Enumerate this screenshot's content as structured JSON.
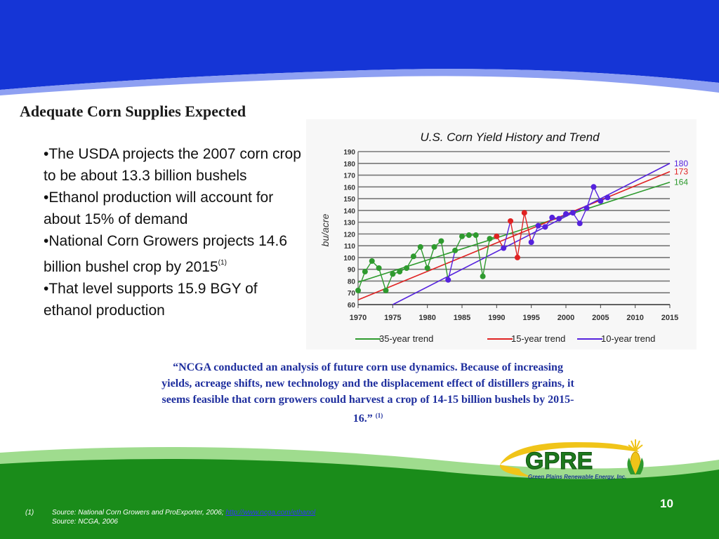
{
  "slide": {
    "title": "Adequate Corn Supplies Expected",
    "bullets": [
      "•The USDA projects the 2007 corn crop to be about 13.3 billion bushels",
      "•Ethanol production will account for about 15% of demand",
      "•National Corn Growers projects 14.6 billion bushel crop by 2015",
      "•That level supports 15.9 BGY of ethanol production"
    ],
    "bullet3_ref": "(1)",
    "quote": "“NCGA conducted an analysis of future corn use dynamics.  Because of increasing yields, acreage shifts, new technology and the displacement effect of distillers grains, it seems feasible that corn growers could harvest a crop of 14-15 billion bushels by 2015-16.”",
    "quote_ref": "(1)",
    "page_number": "10",
    "logo_text": "GPRE",
    "logo_subtext": "Green Plains Renewable Energy, Inc.",
    "footnote": {
      "marker": "(1)",
      "line1": "Source:  National Corn Growers and ProExporter, 2006; ",
      "link": "http://www.ncga.com/ethanol",
      "line2": "Source:  NCGA, 2006"
    }
  },
  "colors": {
    "top_banner": "#1535d6",
    "bottom_banner": "#1a8c1a",
    "green_series": "#2e9a2e",
    "red_series": "#e02222",
    "purple_series": "#5522dd",
    "quote_text": "#1f2f9e"
  },
  "chart_data": {
    "type": "line",
    "title": "U.S. Corn Yield History and Trend",
    "ylabel": "bu/acre",
    "xlabel": "",
    "xlim": [
      1970,
      2015
    ],
    "ylim": [
      60,
      190
    ],
    "x_ticks": [
      1970,
      1975,
      1980,
      1985,
      1990,
      1995,
      2000,
      2005,
      2010,
      2015
    ],
    "y_ticks": [
      60,
      70,
      80,
      90,
      100,
      110,
      120,
      130,
      140,
      150,
      160,
      170,
      180,
      190
    ],
    "grid": "horizontal",
    "legend_position": "bottom",
    "yield_history": {
      "x": [
        1970,
        1971,
        1972,
        1973,
        1974,
        1975,
        1976,
        1977,
        1978,
        1979,
        1980,
        1981,
        1982,
        1983,
        1984,
        1985,
        1986,
        1987,
        1988,
        1989,
        1990,
        1991,
        1992,
        1993,
        1994,
        1995,
        1996,
        1997,
        1998,
        1999,
        2000,
        2001,
        2002,
        2003,
        2004,
        2005,
        2006
      ],
      "y": [
        72,
        88,
        97,
        91,
        72,
        86,
        88,
        91,
        101,
        109,
        91,
        109,
        114,
        81,
        106,
        118,
        119,
        119,
        84,
        116,
        118,
        108,
        131,
        100,
        138,
        113,
        127,
        126,
        134,
        133,
        137,
        138,
        129,
        142,
        160,
        148,
        151
      ],
      "colors": [
        "green",
        "green",
        "green",
        "green",
        "green",
        "green",
        "green",
        "green",
        "green",
        "green",
        "green",
        "green",
        "green",
        "purple",
        "green",
        "green",
        "green",
        "green",
        "green",
        "green",
        "red",
        "purple",
        "red",
        "red",
        "red",
        "purple",
        "purple",
        "purple",
        "purple",
        "purple",
        "purple",
        "purple",
        "purple",
        "purple",
        "purple",
        "purple",
        "purple"
      ]
    },
    "series": [
      {
        "name": "35-year trend",
        "color": "green",
        "x": [
          1970,
          2015
        ],
        "y": [
          79,
          164
        ],
        "end_label": "164"
      },
      {
        "name": "15-year trend",
        "color": "red",
        "x": [
          1970,
          2015
        ],
        "y": [
          64,
          173
        ],
        "end_label": "173"
      },
      {
        "name": "10-year trend",
        "color": "purple",
        "x": [
          1975,
          2015
        ],
        "y": [
          60,
          180
        ],
        "end_label": "180"
      }
    ]
  }
}
